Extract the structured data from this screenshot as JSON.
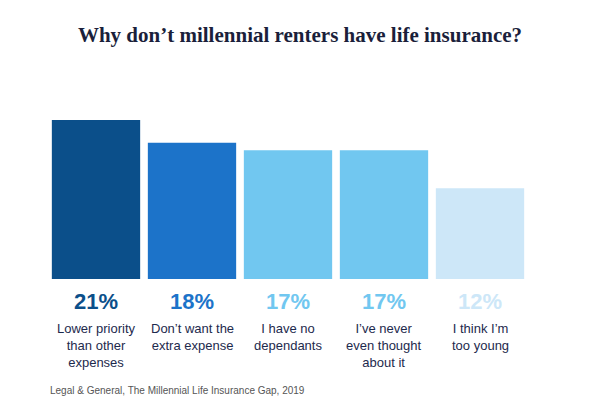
{
  "chart_data": {
    "type": "bar",
    "title": "Why don’t millennial renters have life insurance?",
    "categories": [
      "Lower priority than other expenses",
      "Don’t want the extra expense",
      "I have no dependants",
      "I’ve never even thought about it",
      "I think I’m too young"
    ],
    "values": [
      21,
      18,
      17,
      17,
      12
    ],
    "value_labels": [
      "21%",
      "18%",
      "17%",
      "17%",
      "12%"
    ],
    "colors": [
      "#0b4f8a",
      "#1c73c9",
      "#71c7f0",
      "#71c7f0",
      "#cde7f8"
    ],
    "ylim": [
      0,
      21
    ],
    "data_labels": true,
    "tick_labels": false,
    "grid": false,
    "source": "Legal & General, The Millennial Life Insurance Gap, 2019"
  }
}
